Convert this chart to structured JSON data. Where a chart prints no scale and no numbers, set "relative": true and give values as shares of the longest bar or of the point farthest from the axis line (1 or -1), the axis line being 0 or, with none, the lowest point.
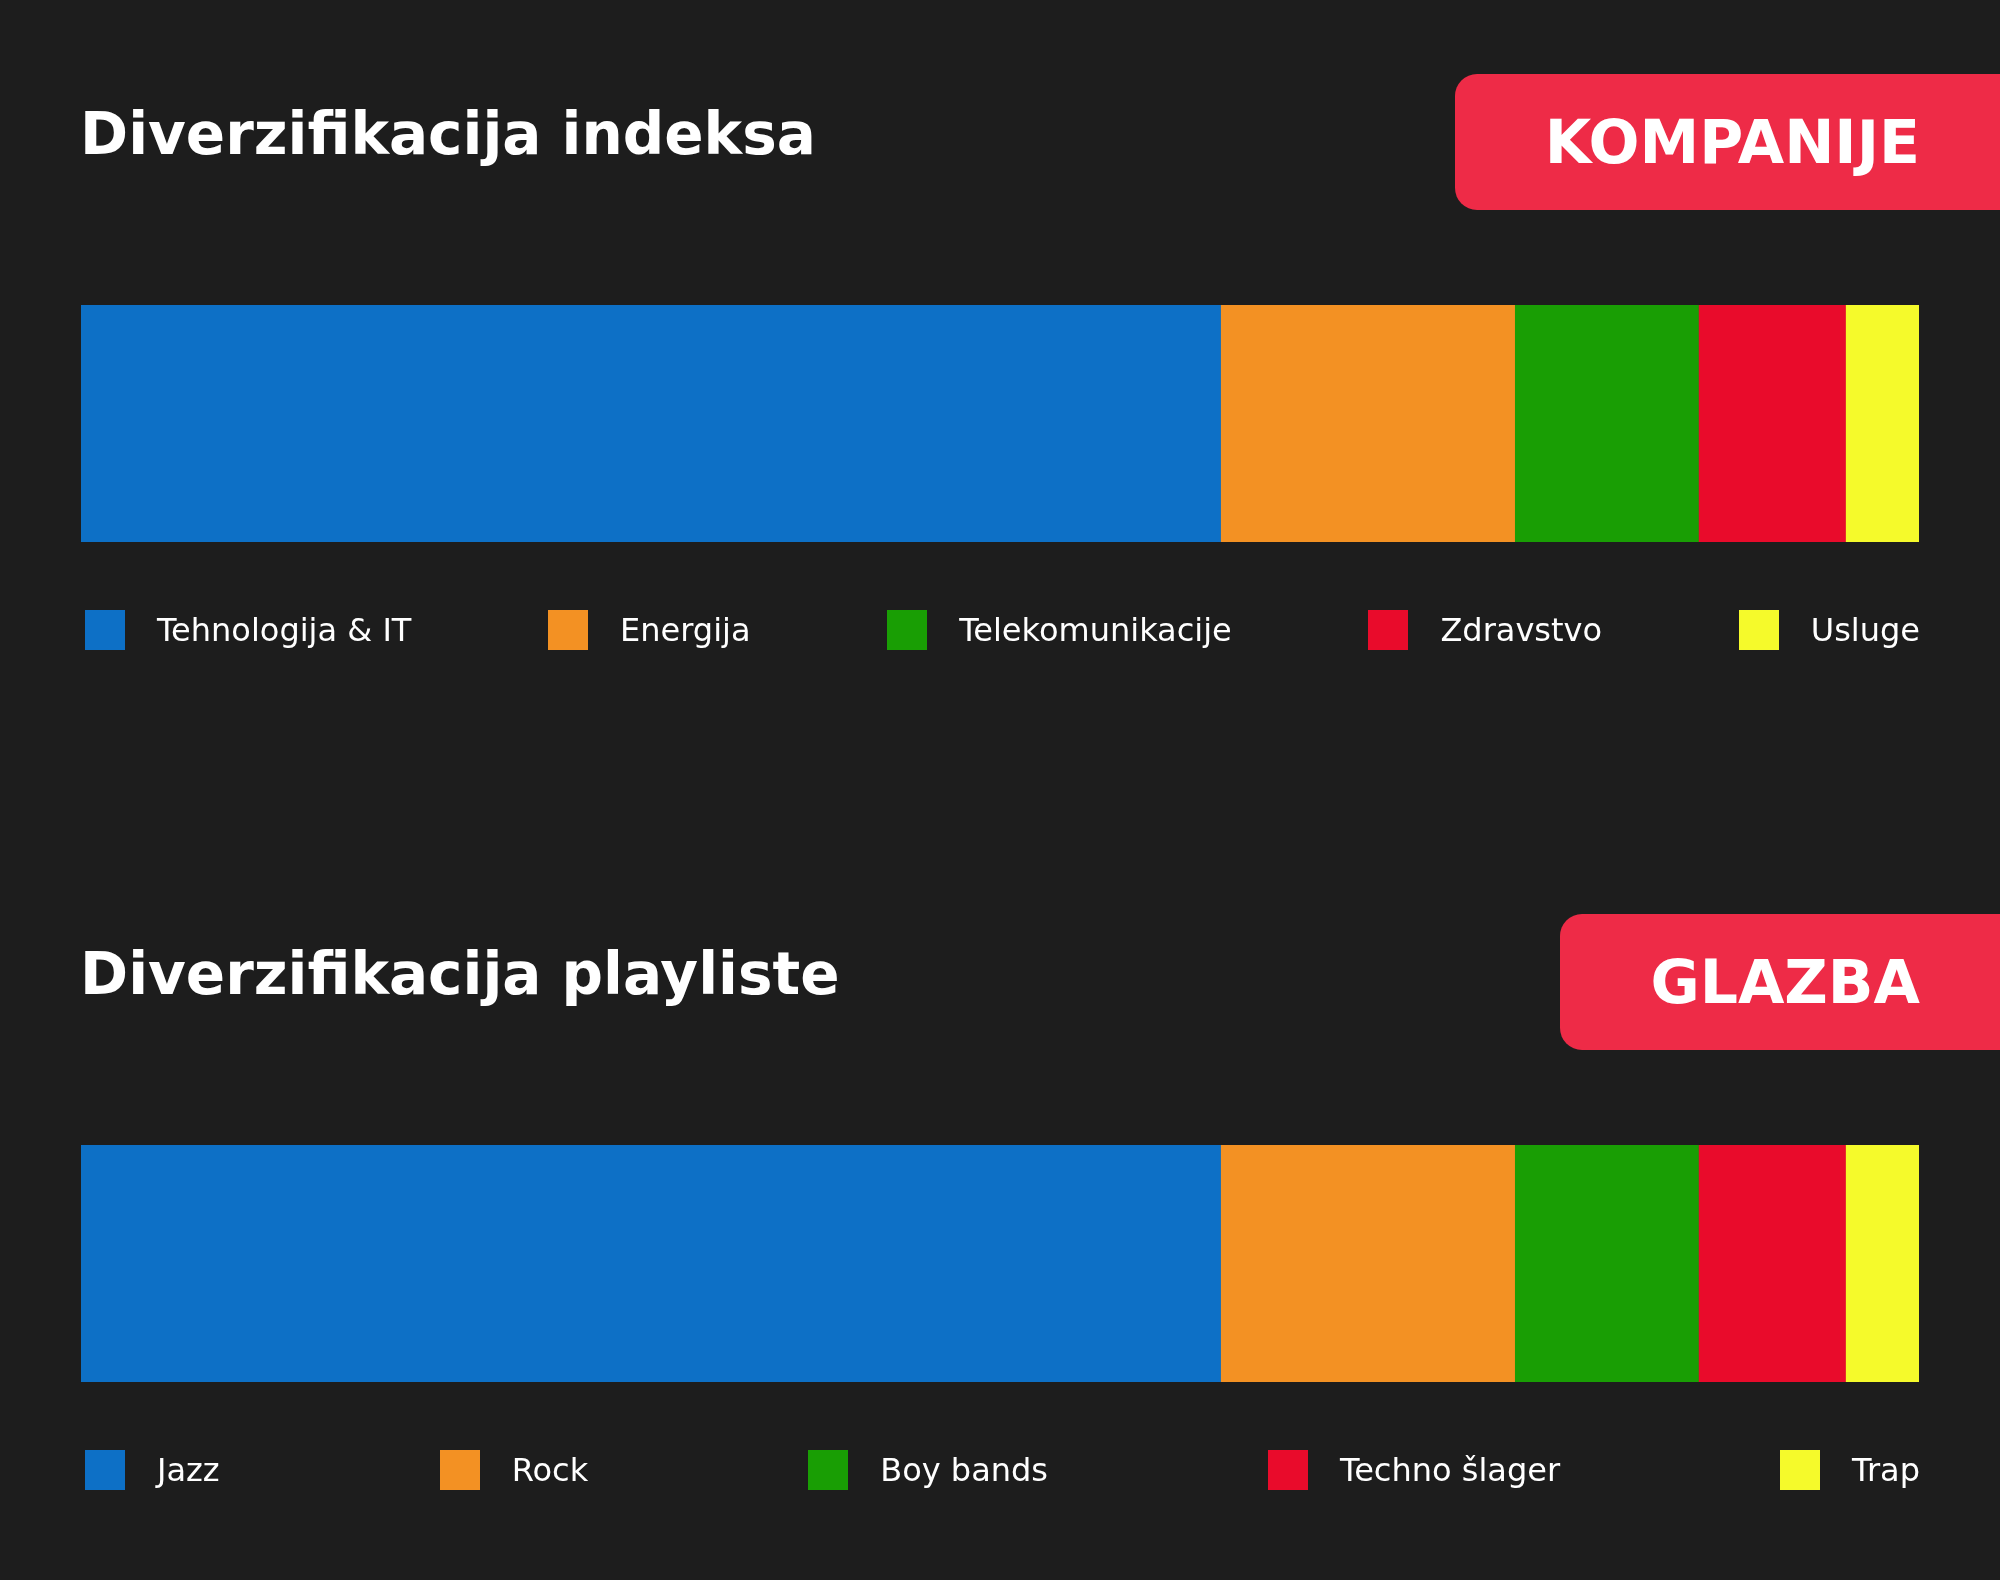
{
  "chart_data": [
    {
      "type": "bar",
      "title": "Diverzifikacija indeksa",
      "subtitle": "KOMPANIJE",
      "categories": [
        null
      ],
      "orientation": "horizontal",
      "stacked": true,
      "relative": true,
      "legend": "bottom",
      "series": [
        {
          "name": "Tehnologija & IT",
          "color": "#0d70c6",
          "values": [
            0.62
          ]
        },
        {
          "name": "Energija",
          "color": "#f39123",
          "values": [
            0.16
          ]
        },
        {
          "name": "Telekomunikacije",
          "color": "#199e04",
          "values": [
            0.1
          ]
        },
        {
          "name": "Zdravstvo",
          "color": "#e90b2b",
          "values": [
            0.08
          ]
        },
        {
          "name": "Usluge",
          "color": "#f5fa2b",
          "values": [
            0.04
          ]
        }
      ]
    },
    {
      "type": "bar",
      "title": "Diverzifikacija playliste",
      "subtitle": "GLAZBA",
      "categories": [
        null
      ],
      "orientation": "horizontal",
      "stacked": true,
      "relative": true,
      "legend": "bottom",
      "series": [
        {
          "name": "Jazz",
          "color": "#0d70c6",
          "values": [
            0.62
          ]
        },
        {
          "name": "Rock",
          "color": "#f39123",
          "values": [
            0.16
          ]
        },
        {
          "name": "Boy bands",
          "color": "#199e04",
          "values": [
            0.1
          ]
        },
        {
          "name": "Techno šlager",
          "color": "#e90b2b",
          "values": [
            0.08
          ]
        },
        {
          "name": "Trap",
          "color": "#f5fa2b",
          "values": [
            0.04
          ]
        }
      ]
    }
  ]
}
